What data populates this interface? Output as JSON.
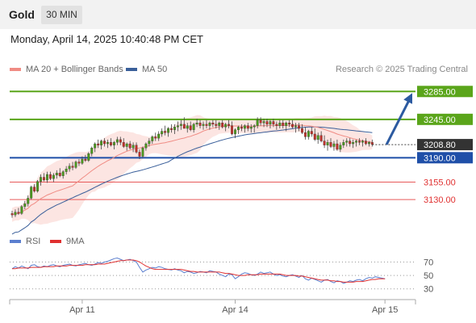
{
  "header": {
    "title": "Gold",
    "timeframe": "30 MIN"
  },
  "datetime": "Monday, April 14, 2025 10:40:48 PM CET",
  "legend": [
    {
      "label": "MA 20 + Bollinger Bands",
      "color": "#f08c84"
    },
    {
      "label": "MA 50",
      "color": "#3a5f9a"
    }
  ],
  "credit": "Research © 2025 Trading Central",
  "rsi_legend": [
    {
      "label": "RSI",
      "color": "#5b7fcf"
    },
    {
      "label": "9MA",
      "color": "#e03030"
    }
  ],
  "chart_data": {
    "type": "candlestick",
    "price_ylim": [
      3085,
      3305
    ],
    "levels": [
      {
        "value": 3285.0,
        "label": "3285.00",
        "kind": "resistance",
        "color": "#5aa51a"
      },
      {
        "value": 3245.0,
        "label": "3245.00",
        "kind": "resistance",
        "color": "#5aa51a"
      },
      {
        "value": 3190.0,
        "label": "3190.00",
        "kind": "pivot",
        "color": "#1f4fa8"
      },
      {
        "value": 3155.0,
        "label": "3155.00",
        "kind": "support",
        "color": "#e85a5a"
      },
      {
        "value": 3130.0,
        "label": "3130.00",
        "kind": "support",
        "color": "#e85a5a"
      }
    ],
    "last_price": {
      "value": 3208.8,
      "label": "3208.80"
    },
    "x_ticks": [
      {
        "index": 22,
        "label": "Apr 11"
      },
      {
        "index": 70,
        "label": "Apr 14"
      },
      {
        "index": 117,
        "label": "Apr 15"
      }
    ],
    "ohlc": [
      [
        3110,
        3114,
        3104,
        3108
      ],
      [
        3108,
        3116,
        3105,
        3112
      ],
      [
        3112,
        3118,
        3108,
        3110
      ],
      [
        3110,
        3122,
        3108,
        3120
      ],
      [
        3120,
        3128,
        3116,
        3124
      ],
      [
        3124,
        3136,
        3120,
        3132
      ],
      [
        3132,
        3150,
        3130,
        3148
      ],
      [
        3148,
        3152,
        3140,
        3142
      ],
      [
        3142,
        3158,
        3140,
        3156
      ],
      [
        3156,
        3166,
        3150,
        3162
      ],
      [
        3162,
        3168,
        3156,
        3158
      ],
      [
        3158,
        3170,
        3154,
        3166
      ],
      [
        3166,
        3170,
        3158,
        3160
      ],
      [
        3160,
        3168,
        3155,
        3165
      ],
      [
        3165,
        3172,
        3160,
        3168
      ],
      [
        3168,
        3175,
        3162,
        3164
      ],
      [
        3164,
        3172,
        3160,
        3170
      ],
      [
        3170,
        3178,
        3166,
        3174
      ],
      [
        3174,
        3182,
        3170,
        3178
      ],
      [
        3178,
        3184,
        3172,
        3176
      ],
      [
        3176,
        3186,
        3174,
        3184
      ],
      [
        3184,
        3188,
        3178,
        3182
      ],
      [
        3182,
        3192,
        3180,
        3188
      ],
      [
        3188,
        3194,
        3184,
        3186
      ],
      [
        3186,
        3198,
        3184,
        3196
      ],
      [
        3196,
        3206,
        3192,
        3204
      ],
      [
        3204,
        3212,
        3198,
        3210
      ],
      [
        3210,
        3216,
        3204,
        3208
      ],
      [
        3208,
        3216,
        3202,
        3214
      ],
      [
        3214,
        3218,
        3206,
        3210
      ],
      [
        3210,
        3216,
        3204,
        3212
      ],
      [
        3212,
        3218,
        3206,
        3208
      ],
      [
        3208,
        3214,
        3202,
        3212
      ],
      [
        3212,
        3220,
        3208,
        3216
      ],
      [
        3216,
        3220,
        3208,
        3212
      ],
      [
        3212,
        3218,
        3204,
        3206
      ],
      [
        3206,
        3212,
        3200,
        3210
      ],
      [
        3210,
        3214,
        3202,
        3204
      ],
      [
        3204,
        3212,
        3198,
        3208
      ],
      [
        3208,
        3212,
        3196,
        3198
      ],
      [
        3198,
        3202,
        3188,
        3192
      ],
      [
        3192,
        3206,
        3190,
        3204
      ],
      [
        3204,
        3212,
        3200,
        3210
      ],
      [
        3210,
        3218,
        3206,
        3214
      ],
      [
        3214,
        3222,
        3210,
        3220
      ],
      [
        3220,
        3226,
        3214,
        3218
      ],
      [
        3218,
        3228,
        3214,
        3224
      ],
      [
        3224,
        3232,
        3220,
        3228
      ],
      [
        3228,
        3236,
        3222,
        3226
      ],
      [
        3226,
        3234,
        3220,
        3232
      ],
      [
        3232,
        3238,
        3226,
        3230
      ],
      [
        3230,
        3238,
        3224,
        3234
      ],
      [
        3234,
        3242,
        3228,
        3236
      ],
      [
        3236,
        3244,
        3230,
        3238
      ],
      [
        3238,
        3248,
        3232,
        3232
      ],
      [
        3232,
        3240,
        3226,
        3236
      ],
      [
        3236,
        3242,
        3228,
        3230
      ],
      [
        3230,
        3240,
        3226,
        3238
      ],
      [
        3238,
        3246,
        3234,
        3240
      ],
      [
        3240,
        3244,
        3232,
        3236
      ],
      [
        3236,
        3242,
        3230,
        3238
      ],
      [
        3238,
        3244,
        3232,
        3236
      ],
      [
        3236,
        3242,
        3230,
        3240
      ],
      [
        3240,
        3244,
        3234,
        3238
      ],
      [
        3238,
        3244,
        3232,
        3236
      ],
      [
        3236,
        3242,
        3230,
        3240
      ],
      [
        3240,
        3244,
        3232,
        3234
      ],
      [
        3234,
        3240,
        3228,
        3238
      ],
      [
        3238,
        3244,
        3232,
        3236
      ],
      [
        3236,
        3242,
        3222,
        3224
      ],
      [
        3224,
        3232,
        3218,
        3230
      ],
      [
        3230,
        3236,
        3224,
        3234
      ],
      [
        3234,
        3238,
        3228,
        3232
      ],
      [
        3232,
        3238,
        3226,
        3236
      ],
      [
        3236,
        3240,
        3228,
        3232
      ],
      [
        3232,
        3238,
        3226,
        3234
      ],
      [
        3234,
        3238,
        3226,
        3236
      ],
      [
        3236,
        3248,
        3232,
        3244
      ],
      [
        3244,
        3248,
        3236,
        3240
      ],
      [
        3240,
        3246,
        3234,
        3242
      ],
      [
        3242,
        3246,
        3234,
        3238
      ],
      [
        3238,
        3244,
        3232,
        3242
      ],
      [
        3242,
        3246,
        3234,
        3238
      ],
      [
        3238,
        3242,
        3230,
        3236
      ],
      [
        3236,
        3244,
        3232,
        3240
      ],
      [
        3240,
        3244,
        3232,
        3236
      ],
      [
        3236,
        3242,
        3228,
        3240
      ],
      [
        3240,
        3244,
        3234,
        3238
      ],
      [
        3238,
        3244,
        3232,
        3234
      ],
      [
        3234,
        3240,
        3226,
        3236
      ],
      [
        3236,
        3240,
        3228,
        3232
      ],
      [
        3232,
        3238,
        3224,
        3226
      ],
      [
        3226,
        3234,
        3216,
        3220
      ],
      [
        3220,
        3230,
        3216,
        3228
      ],
      [
        3228,
        3234,
        3220,
        3224
      ],
      [
        3224,
        3232,
        3214,
        3216
      ],
      [
        3216,
        3226,
        3210,
        3222
      ],
      [
        3222,
        3228,
        3212,
        3214
      ],
      [
        3214,
        3222,
        3204,
        3208
      ],
      [
        3208,
        3216,
        3200,
        3212
      ],
      [
        3212,
        3218,
        3204,
        3206
      ],
      [
        3206,
        3214,
        3200,
        3210
      ],
      [
        3210,
        3216,
        3200,
        3202
      ],
      [
        3202,
        3212,
        3198,
        3208
      ],
      [
        3208,
        3216,
        3204,
        3212
      ],
      [
        3212,
        3218,
        3206,
        3214
      ],
      [
        3214,
        3218,
        3206,
        3210
      ],
      [
        3210,
        3216,
        3204,
        3212
      ],
      [
        3212,
        3216,
        3206,
        3214
      ],
      [
        3214,
        3218,
        3208,
        3212
      ],
      [
        3212,
        3216,
        3206,
        3214
      ],
      [
        3214,
        3218,
        3208,
        3210
      ],
      [
        3210,
        3214,
        3206,
        3212
      ],
      [
        3212,
        3216,
        3206,
        3209
      ]
    ],
    "projection": {
      "from_index": 117,
      "from_value": 3209,
      "to_value": 3285
    },
    "rsi": {
      "ylim": [
        20,
        85
      ],
      "levels": [
        70,
        50,
        30
      ],
      "rsi_values": [
        60,
        63,
        61,
        64,
        62,
        60,
        65,
        66,
        63,
        62,
        64,
        63,
        65,
        66,
        64,
        63,
        65,
        66,
        67,
        65,
        64,
        66,
        67,
        68,
        66,
        65,
        67,
        69,
        68,
        70,
        71,
        73,
        75,
        76,
        74,
        72,
        73,
        74,
        72,
        70,
        62,
        55,
        58,
        60,
        62,
        61,
        63,
        62,
        60,
        59,
        58,
        60,
        58,
        57,
        54,
        56,
        55,
        53,
        54,
        56,
        55,
        54,
        57,
        56,
        55,
        52,
        50,
        48,
        52,
        51,
        45,
        48,
        52,
        54,
        53,
        51,
        50,
        52,
        55,
        53,
        54,
        55,
        52,
        50,
        51,
        49,
        48,
        50,
        51,
        49,
        47,
        50,
        45,
        43,
        46,
        44,
        42,
        40,
        43,
        44,
        41,
        39,
        42,
        41,
        38,
        40,
        42,
        41,
        43,
        44,
        42,
        45,
        47,
        46,
        48,
        47,
        46,
        45
      ],
      "ma_values": [
        60,
        60,
        61,
        61,
        61,
        61,
        62,
        62,
        62,
        62,
        63,
        63,
        63,
        63,
        64,
        64,
        64,
        64,
        65,
        65,
        65,
        65,
        65,
        66,
        66,
        66,
        66,
        67,
        67,
        67,
        68,
        69,
        70,
        71,
        72,
        72,
        73,
        73,
        73,
        72,
        70,
        67,
        64,
        62,
        60,
        59,
        59,
        59,
        59,
        59,
        59,
        59,
        59,
        59,
        58,
        57,
        56,
        56,
        55,
        55,
        55,
        55,
        55,
        55,
        55,
        55,
        54,
        53,
        53,
        52,
        51,
        50,
        50,
        50,
        51,
        51,
        51,
        51,
        52,
        52,
        52,
        52,
        52,
        52,
        52,
        51,
        50,
        50,
        50,
        50,
        49,
        49,
        48,
        47,
        46,
        45,
        44,
        43,
        43,
        43,
        42,
        42,
        41,
        41,
        40,
        40,
        40,
        40,
        41,
        41,
        41,
        42,
        43,
        44,
        44,
        45,
        45,
        45
      ]
    }
  }
}
